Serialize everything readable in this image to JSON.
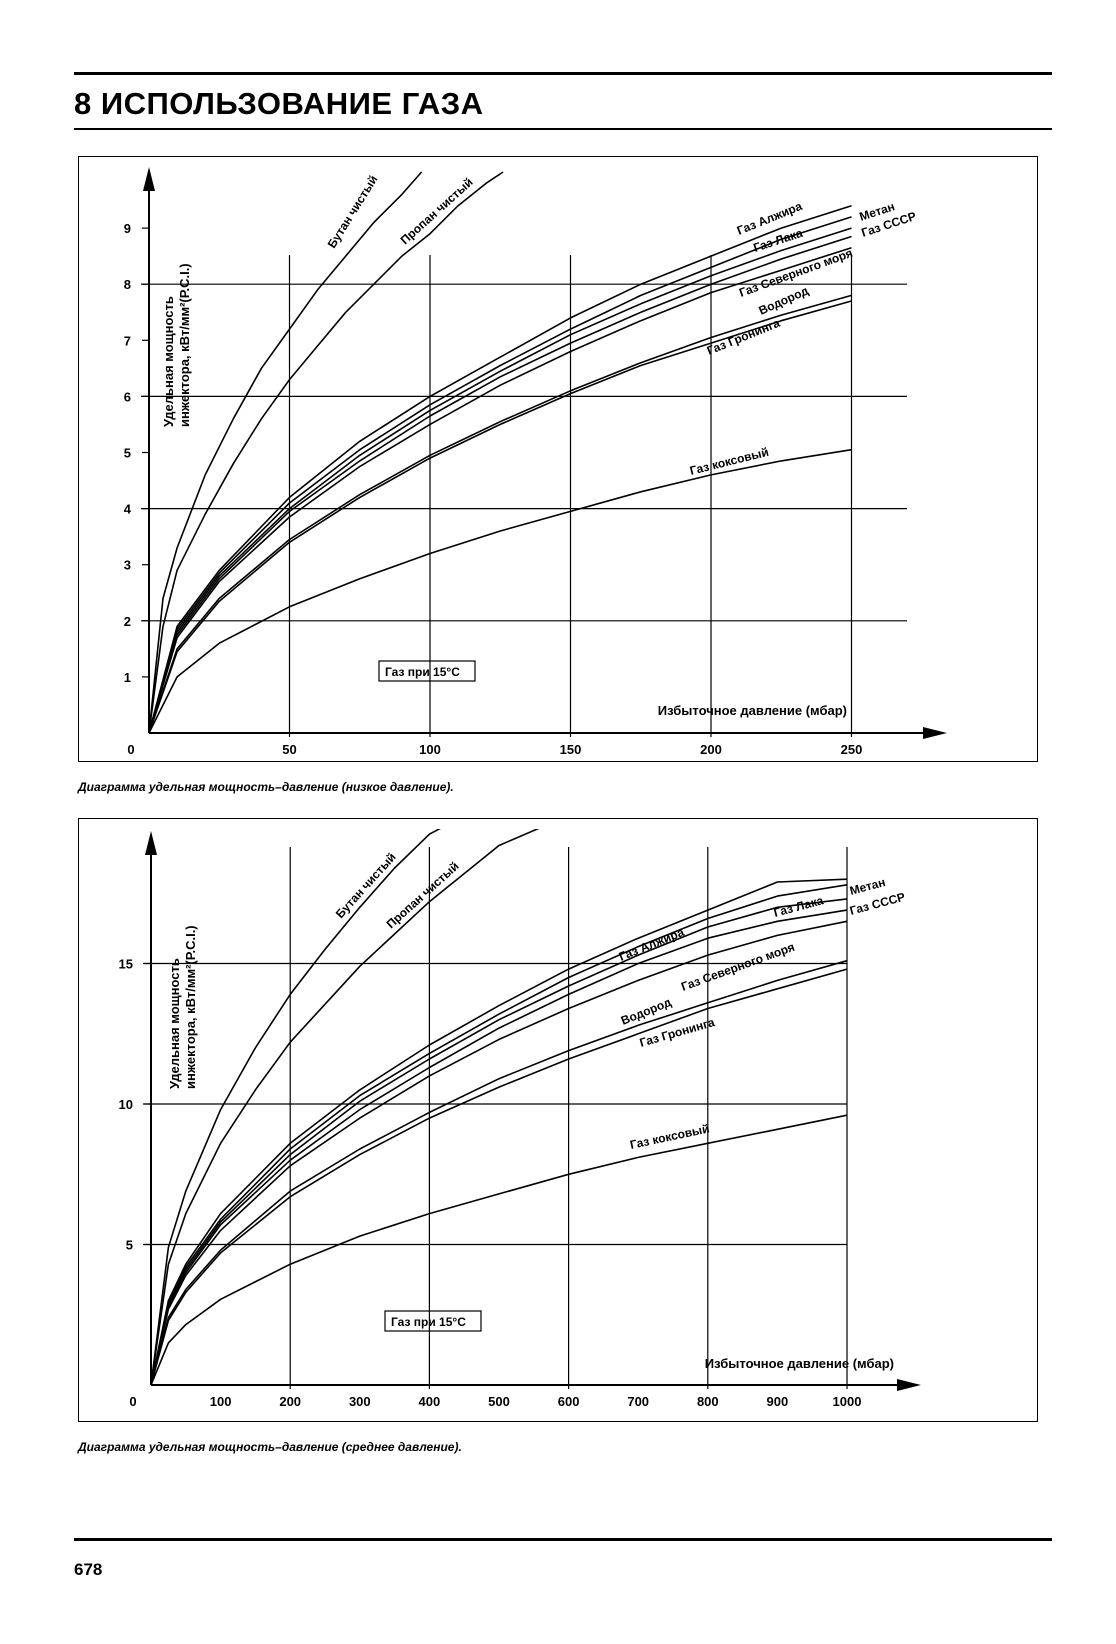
{
  "header": {
    "title": "8 ИСПОЛЬЗОВАНИЕ ГАЗА"
  },
  "footer": {
    "page_number": "678"
  },
  "chart_data": [
    {
      "type": "line",
      "caption": "Диаграмма удельная мощность–давление (низкое давление).",
      "ylabel_line1": "Удельная мощность",
      "ylabel_line2": "инжектора, кВт/мм²(Р.С.I.)",
      "xlabel": "Избыточное давление (мбар)",
      "annotation": "Газ при 15°С",
      "origin_label": "0",
      "xlim": [
        0,
        280
      ],
      "ylim": [
        0,
        10
      ],
      "x_ticks": [
        50,
        100,
        150,
        200,
        250
      ],
      "x_tick_labels": [
        "50",
        "100",
        "150",
        "200",
        "250"
      ],
      "y_ticks": [
        1,
        2,
        3,
        4,
        5,
        6,
        7,
        8,
        9
      ],
      "y_tick_labels": [
        "1",
        "2",
        "3",
        "4",
        "5",
        "6",
        "7",
        "8",
        "9"
      ],
      "h_gridlines": [
        2,
        4,
        6,
        8
      ],
      "v_gridlines": [
        50,
        100,
        150,
        200,
        250
      ],
      "series": [
        {
          "name": "Бутан чистый",
          "x": [
            0,
            5,
            10,
            20,
            30,
            40,
            50,
            60,
            70,
            80,
            90,
            97
          ],
          "y": [
            0,
            2.4,
            3.3,
            4.6,
            5.6,
            6.5,
            7.2,
            7.9,
            8.5,
            9.1,
            9.6,
            10
          ]
        },
        {
          "name": "Пропан чистый",
          "x": [
            0,
            5,
            10,
            20,
            30,
            40,
            50,
            60,
            70,
            80,
            90,
            100,
            110,
            120,
            126
          ],
          "y": [
            0,
            1.9,
            2.9,
            3.9,
            4.8,
            5.6,
            6.3,
            6.9,
            7.5,
            8.0,
            8.5,
            8.9,
            9.4,
            9.8,
            10
          ]
        },
        {
          "name": "Газ Алжира",
          "x": [
            0,
            10,
            25,
            50,
            75,
            100,
            125,
            150,
            175,
            200,
            225,
            250
          ],
          "y": [
            0,
            1.9,
            2.9,
            4.2,
            5.2,
            6.0,
            6.7,
            7.4,
            8.0,
            8.5,
            9.0,
            9.4
          ]
        },
        {
          "name": "Метан",
          "x": [
            0,
            10,
            25,
            50,
            75,
            100,
            125,
            150,
            175,
            200,
            225,
            250
          ],
          "y": [
            0,
            1.85,
            2.85,
            4.1,
            5.05,
            5.85,
            6.55,
            7.2,
            7.8,
            8.3,
            8.8,
            9.2
          ]
        },
        {
          "name": "Газ Лака",
          "x": [
            0,
            10,
            25,
            50,
            75,
            100,
            125,
            150,
            175,
            200,
            225,
            250
          ],
          "y": [
            0,
            1.8,
            2.8,
            4.0,
            4.95,
            5.75,
            6.45,
            7.1,
            7.65,
            8.15,
            8.6,
            9.0
          ]
        },
        {
          "name": "Газ СССР",
          "x": [
            0,
            10,
            25,
            50,
            75,
            100,
            125,
            150,
            175,
            200,
            225,
            250
          ],
          "y": [
            0,
            1.75,
            2.75,
            3.95,
            4.85,
            5.65,
            6.35,
            6.95,
            7.5,
            8.0,
            8.45,
            8.85
          ]
        },
        {
          "name": "Газ Северного моря",
          "x": [
            0,
            10,
            25,
            50,
            75,
            100,
            125,
            150,
            175,
            200,
            225,
            250
          ],
          "y": [
            0,
            1.7,
            2.7,
            3.85,
            4.75,
            5.5,
            6.2,
            6.8,
            7.35,
            7.85,
            8.25,
            8.65
          ]
        },
        {
          "name": "Водород",
          "x": [
            0,
            10,
            25,
            50,
            75,
            100,
            125,
            150,
            175,
            200,
            225,
            250
          ],
          "y": [
            0,
            1.5,
            2.4,
            3.45,
            4.25,
            4.95,
            5.55,
            6.1,
            6.6,
            7.05,
            7.45,
            7.8
          ]
        },
        {
          "name": "Газ Гронинга",
          "x": [
            0,
            10,
            25,
            50,
            75,
            100,
            125,
            150,
            175,
            200,
            225,
            250
          ],
          "y": [
            0,
            1.45,
            2.35,
            3.4,
            4.2,
            4.9,
            5.5,
            6.05,
            6.55,
            6.95,
            7.35,
            7.7
          ]
        },
        {
          "name": "Газ коксовый",
          "x": [
            0,
            10,
            25,
            50,
            75,
            100,
            125,
            150,
            175,
            200,
            225,
            250
          ],
          "y": [
            0,
            1.0,
            1.6,
            2.25,
            2.75,
            3.2,
            3.6,
            3.95,
            4.3,
            4.6,
            4.85,
            5.05
          ]
        }
      ]
    },
    {
      "type": "line",
      "caption": "Диаграмма удельная мощность–давление (среднее давление).",
      "ylabel_line1": "Удельная мощность",
      "ylabel_line2": "инжектора, кВт/мм²(Р.С.I.)",
      "xlabel": "Избыточное давление (мбар)",
      "annotation": "Газ при 15°С",
      "origin_label": "0",
      "xlim": [
        0,
        1110
      ],
      "ylim": [
        0,
        20
      ],
      "x_ticks": [
        100,
        200,
        300,
        400,
        500,
        600,
        700,
        800,
        900,
        1000
      ],
      "x_tick_labels": [
        "100",
        "200",
        "300",
        "400",
        "500",
        "600",
        "700",
        "800",
        "900",
        "1000"
      ],
      "y_ticks": [
        5,
        10,
        15
      ],
      "y_tick_labels": [
        "5",
        "10",
        "15"
      ],
      "h_gridlines": [
        5,
        10,
        15
      ],
      "v_gridlines": [
        200,
        400,
        600,
        800,
        1000
      ],
      "series": [
        {
          "name": "Бутан чистый",
          "x": [
            0,
            25,
            50,
            100,
            150,
            200,
            250,
            300,
            350,
            400,
            430
          ],
          "y": [
            0,
            4.9,
            6.9,
            9.8,
            12.0,
            13.9,
            15.5,
            17.0,
            18.4,
            19.6,
            20
          ]
        },
        {
          "name": "Пропан чистый",
          "x": [
            0,
            25,
            50,
            100,
            150,
            200,
            300,
            400,
            500,
            575
          ],
          "y": [
            0,
            4.3,
            6.1,
            8.6,
            10.5,
            12.2,
            14.9,
            17.2,
            19.2,
            20
          ]
        },
        {
          "name": "Газ Алжира",
          "x": [
            0,
            25,
            50,
            100,
            200,
            300,
            400,
            500,
            600,
            700,
            800,
            900,
            1000
          ],
          "y": [
            0,
            3.0,
            4.3,
            6.1,
            8.6,
            10.5,
            12.1,
            13.5,
            14.8,
            15.9,
            16.9,
            17.9,
            18.0
          ]
        },
        {
          "name": "Газ Лака",
          "x": [
            0,
            25,
            50,
            100,
            200,
            300,
            400,
            500,
            600,
            700,
            800,
            900,
            1000
          ],
          "y": [
            0,
            2.9,
            4.2,
            5.9,
            8.4,
            10.3,
            11.8,
            13.2,
            14.5,
            15.6,
            16.6,
            17.4,
            17.8
          ]
        },
        {
          "name": "Метан",
          "x": [
            0,
            25,
            50,
            100,
            200,
            300,
            400,
            500,
            600,
            700,
            800,
            900,
            1000
          ],
          "y": [
            0,
            2.85,
            4.1,
            5.8,
            8.2,
            10.1,
            11.6,
            13.0,
            14.2,
            15.3,
            16.3,
            17.0,
            17.3
          ]
        },
        {
          "name": "Газ СССР",
          "x": [
            0,
            25,
            50,
            100,
            200,
            300,
            400,
            500,
            600,
            700,
            800,
            900,
            1000
          ],
          "y": [
            0,
            2.8,
            4.0,
            5.7,
            8.0,
            9.8,
            11.3,
            12.7,
            13.9,
            15.0,
            15.9,
            16.5,
            16.9
          ]
        },
        {
          "name": "Газ Северного моря",
          "x": [
            0,
            25,
            50,
            100,
            200,
            300,
            400,
            500,
            600,
            700,
            800,
            900,
            1000
          ],
          "y": [
            0,
            2.7,
            3.9,
            5.5,
            7.8,
            9.5,
            11.0,
            12.3,
            13.4,
            14.4,
            15.3,
            16.0,
            16.5
          ]
        },
        {
          "name": "Водород",
          "x": [
            0,
            25,
            50,
            100,
            200,
            300,
            400,
            500,
            600,
            700,
            800,
            900,
            1000
          ],
          "y": [
            0,
            2.4,
            3.4,
            4.8,
            6.9,
            8.4,
            9.7,
            10.9,
            11.9,
            12.8,
            13.6,
            14.4,
            15.1
          ]
        },
        {
          "name": "Газ Гронинга",
          "x": [
            0,
            25,
            50,
            100,
            200,
            300,
            400,
            500,
            600,
            700,
            800,
            900,
            1000
          ],
          "y": [
            0,
            2.3,
            3.3,
            4.7,
            6.7,
            8.2,
            9.5,
            10.6,
            11.6,
            12.5,
            13.4,
            14.1,
            14.8
          ]
        },
        {
          "name": "Газ коксовый",
          "x": [
            0,
            25,
            50,
            100,
            200,
            300,
            400,
            500,
            600,
            700,
            800,
            900,
            1000
          ],
          "y": [
            0,
            1.5,
            2.15,
            3.05,
            4.3,
            5.3,
            6.1,
            6.8,
            7.5,
            8.1,
            8.6,
            9.1,
            9.6
          ]
        }
      ]
    }
  ]
}
